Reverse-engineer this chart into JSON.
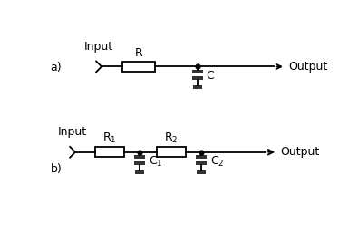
{
  "bg_color": "#ffffff",
  "line_color": "#000000",
  "component_fill": "#ffffff",
  "cap_fill": "#333333",
  "fig_label_a": "a)",
  "fig_label_b": "b)",
  "label_input": "Input",
  "label_output": "Output",
  "label_R": "R",
  "label_R1": "R$_1$",
  "label_R2": "R$_2$",
  "label_C": "C",
  "label_C1": "C$_1$",
  "label_C2": "C$_2$",
  "xa_scale": 10,
  "ya_scale": 7
}
